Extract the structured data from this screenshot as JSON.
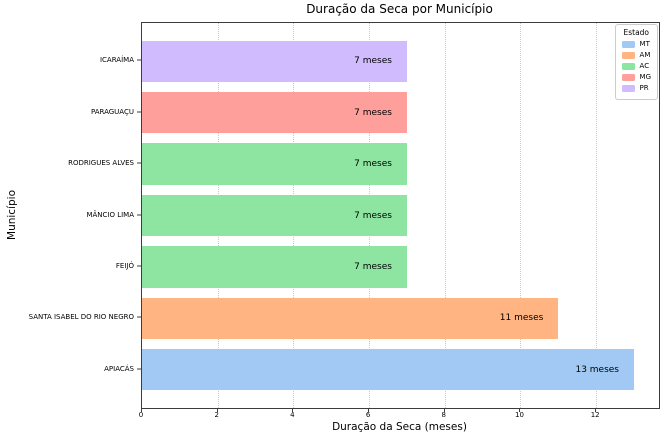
{
  "chart_data": {
    "type": "bar",
    "orientation": "horizontal",
    "title": "Duração da Seca por Município",
    "xlabel": "Duração da Seca (meses)",
    "ylabel": "Município",
    "xlim": [
      0,
      13.66
    ],
    "x_ticks": [
      0,
      2,
      4,
      6,
      8,
      10,
      12
    ],
    "grid": "vertical dotted gridlines only",
    "category_order": "top-to-bottom",
    "categories": [
      "ICARAÍMA",
      "PARAGUAÇU",
      "RODRIGUES ALVES",
      "MÂNCIO LIMA",
      "FEIJÓ",
      "SANTA ISABEL DO RIO NEGRO",
      "APIACÁS"
    ],
    "values": [
      7,
      7,
      7,
      7,
      7,
      11,
      13
    ],
    "bar_labels": [
      "7 meses",
      "7 meses",
      "7 meses",
      "7 meses",
      "7 meses",
      "11 meses",
      "13 meses"
    ],
    "bar_states": [
      "PR",
      "MG",
      "AC",
      "AC",
      "AC",
      "AM",
      "MT"
    ],
    "state_colors": {
      "MT": "#A1C9F4",
      "AM": "#FFB482",
      "AC": "#8DE5A1",
      "MG": "#FF9F9B",
      "PR": "#D0BBFF"
    },
    "legend": {
      "title": "Estado",
      "position": "upper right",
      "entries": [
        {
          "label": "MT",
          "color": "#A1C9F4"
        },
        {
          "label": "AM",
          "color": "#FFB482"
        },
        {
          "label": "AC",
          "color": "#8DE5A1"
        },
        {
          "label": "MG",
          "color": "#FF9F9B"
        },
        {
          "label": "PR",
          "color": "#D0BBFF"
        }
      ]
    }
  }
}
